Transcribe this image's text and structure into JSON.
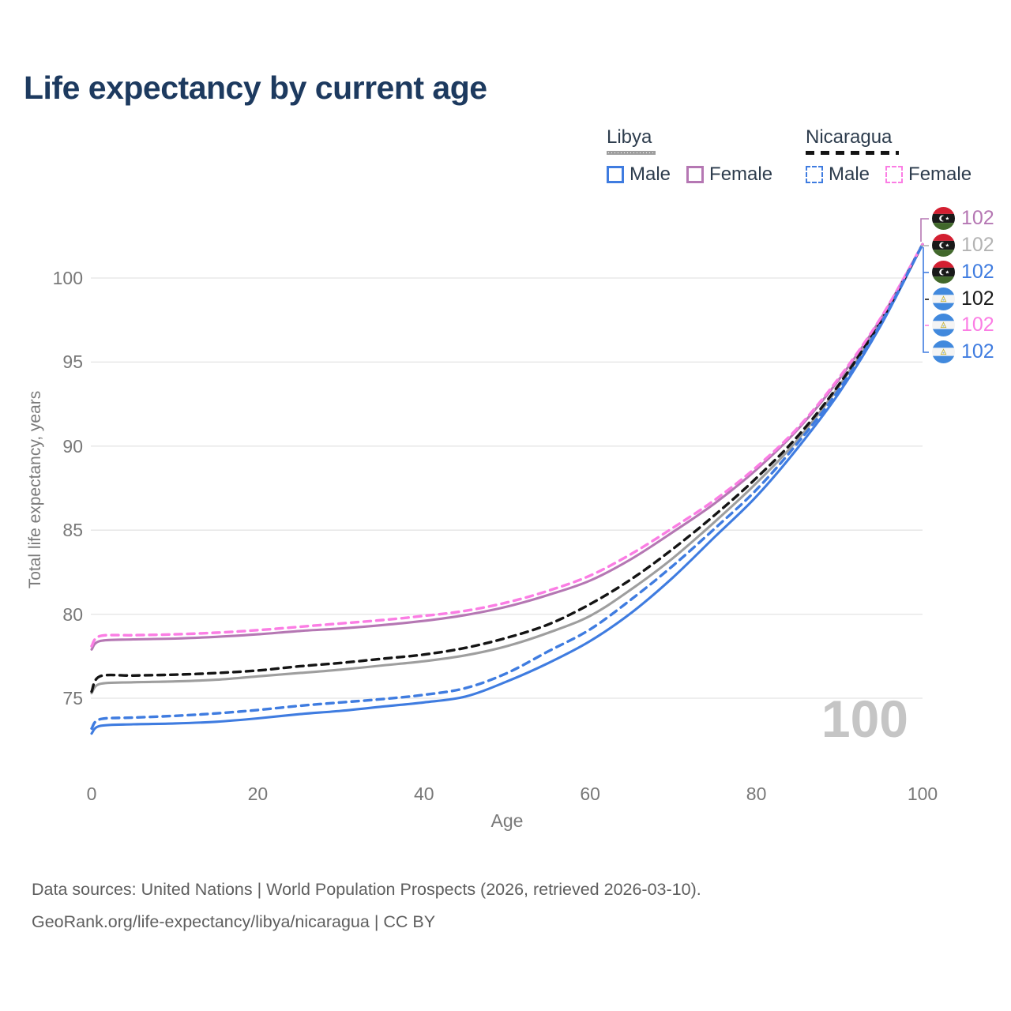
{
  "title": "Life expectancy by current age",
  "legend": {
    "libya": {
      "name": "Libya",
      "male_label": "Male",
      "female_label": "Female"
    },
    "nicaragua": {
      "name": "Nicaragua",
      "male_label": "Male",
      "female_label": "Female"
    }
  },
  "colors": {
    "blue": "#3f7ce0",
    "purple": "#b577b3",
    "pink": "#fb7de4",
    "gray": "#9e9e9e",
    "black": "#141414",
    "gridline": "#e4e4e4",
    "title_text": "#1d3a5f",
    "axis_text": "#787878",
    "watermark_text": "#c5c5c5"
  },
  "watermark": "100",
  "chart_data": {
    "type": "line",
    "title": "Life expectancy by current age",
    "xlabel": "Age",
    "ylabel": "Total life expectancy, years",
    "xlim": [
      0,
      100
    ],
    "ylim": [
      72.5,
      103
    ],
    "xticks": [
      0,
      20,
      40,
      60,
      80,
      100
    ],
    "yticks": [
      75,
      80,
      85,
      90,
      95,
      100
    ],
    "grid": "horizontal",
    "legend_position": "top-right",
    "x": [
      0,
      1,
      5,
      10,
      15,
      20,
      25,
      30,
      35,
      40,
      45,
      50,
      55,
      60,
      65,
      70,
      75,
      80,
      85,
      90,
      95,
      100
    ],
    "series": [
      {
        "name": "Libya Total",
        "country": "Libya",
        "group": "Total",
        "color": "#9e9e9e",
        "dash": "solid",
        "values": [
          75.3,
          75.85,
          75.95,
          76.0,
          76.1,
          76.3,
          76.5,
          76.7,
          76.95,
          77.2,
          77.55,
          78.1,
          78.9,
          79.9,
          81.5,
          83.35,
          85.5,
          87.8,
          90.4,
          93.6,
          97.4,
          102
        ],
        "end_label": "102"
      },
      {
        "name": "Libya Female",
        "country": "Libya",
        "group": "Female",
        "color": "#b577b3",
        "dash": "solid",
        "values": [
          77.9,
          78.4,
          78.5,
          78.55,
          78.65,
          78.8,
          79.0,
          79.15,
          79.35,
          79.6,
          79.95,
          80.45,
          81.15,
          82.0,
          83.3,
          84.9,
          86.6,
          88.6,
          91.0,
          94.0,
          97.6,
          102
        ],
        "end_label": "102"
      },
      {
        "name": "Libya Male",
        "country": "Libya",
        "group": "Male",
        "color": "#3f7ce0",
        "dash": "solid",
        "values": [
          72.9,
          73.35,
          73.45,
          73.5,
          73.6,
          73.8,
          74.05,
          74.25,
          74.5,
          74.75,
          75.1,
          76.0,
          77.1,
          78.4,
          80.1,
          82.2,
          84.6,
          87.0,
          89.9,
          93.2,
          97.2,
          102
        ],
        "end_label": "102"
      },
      {
        "name": "Nicaragua Total",
        "country": "Nicaragua",
        "group": "Total",
        "color": "#141414",
        "dash": "dashed",
        "values": [
          75.4,
          76.3,
          76.35,
          76.4,
          76.5,
          76.65,
          76.9,
          77.1,
          77.35,
          77.6,
          78.0,
          78.6,
          79.4,
          80.6,
          82.1,
          83.9,
          85.9,
          88.1,
          90.6,
          93.7,
          97.45,
          102
        ],
        "end_label": "102"
      },
      {
        "name": "Nicaragua Female",
        "country": "Nicaragua",
        "group": "Female",
        "color": "#fb7de4",
        "dash": "dashed",
        "values": [
          78.1,
          78.7,
          78.75,
          78.8,
          78.9,
          79.05,
          79.25,
          79.45,
          79.65,
          79.9,
          80.2,
          80.7,
          81.4,
          82.3,
          83.6,
          85.15,
          86.8,
          88.75,
          91.1,
          94.1,
          97.65,
          102
        ],
        "end_label": "102"
      },
      {
        "name": "Nicaragua Male",
        "country": "Nicaragua",
        "group": "Male",
        "color": "#3f7ce0",
        "dash": "dashed",
        "values": [
          73.2,
          73.75,
          73.85,
          73.95,
          74.1,
          74.3,
          74.55,
          74.75,
          74.95,
          75.2,
          75.6,
          76.5,
          77.8,
          79.1,
          80.9,
          82.9,
          85.1,
          87.4,
          90.2,
          93.4,
          97.3,
          102
        ],
        "end_label": "102"
      }
    ]
  },
  "end_labels": [
    {
      "flag": "libya",
      "value": "102",
      "color": "#b577b3"
    },
    {
      "flag": "libya",
      "value": "102",
      "color": "#b3b3b3"
    },
    {
      "flag": "libya",
      "value": "102",
      "color": "#3f7ce0"
    },
    {
      "flag": "nicaragua",
      "value": "102",
      "color": "#1a1a1a"
    },
    {
      "flag": "nicaragua",
      "value": "102",
      "color": "#fb7de4"
    },
    {
      "flag": "nicaragua",
      "value": "102",
      "color": "#3f7ce0"
    }
  ],
  "footer": {
    "line1": "Data sources: United Nations | World Population Prospects (2026, retrieved 2026-03-10).",
    "line2": "GeoRank.org/life-expectancy/libya/nicaragua | CC BY"
  }
}
